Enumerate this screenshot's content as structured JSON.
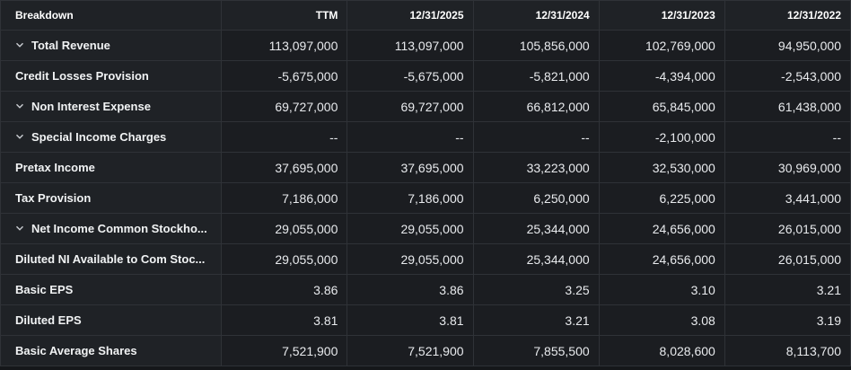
{
  "header": [
    "Breakdown",
    "TTM",
    "12/31/2025",
    "12/31/2024",
    "12/31/2023",
    "12/31/2022"
  ],
  "rows": [
    {
      "label": "Total Revenue",
      "expand_icon": "chevron-down-icon",
      "values": [
        "113,097,000",
        "113,097,000",
        "105,856,000",
        "102,769,000",
        "94,950,000"
      ]
    },
    {
      "label": "Credit Losses Provision",
      "values": [
        "-5,675,000",
        "-5,675,000",
        "-5,821,000",
        "-4,394,000",
        "-2,543,000"
      ]
    },
    {
      "label": "Non Interest Expense",
      "expand_icon": "chevron-down-icon",
      "values": [
        "69,727,000",
        "69,727,000",
        "66,812,000",
        "65,845,000",
        "61,438,000"
      ]
    },
    {
      "label": "Special Income Charges",
      "expand_icon": "chevron-down-icon",
      "values": [
        "--",
        "--",
        "--",
        "-2,100,000",
        "--"
      ]
    },
    {
      "label": "Pretax Income",
      "values": [
        "37,695,000",
        "37,695,000",
        "33,223,000",
        "32,530,000",
        "30,969,000"
      ]
    },
    {
      "label": "Tax Provision",
      "values": [
        "7,186,000",
        "7,186,000",
        "6,250,000",
        "6,225,000",
        "3,441,000"
      ]
    },
    {
      "label": "Net Income Common Stockho...",
      "expand_icon": "chevron-down-icon",
      "values": [
        "29,055,000",
        "29,055,000",
        "25,344,000",
        "24,656,000",
        "26,015,000"
      ]
    },
    {
      "label": "Diluted NI Available to Com Stoc...",
      "values": [
        "29,055,000",
        "29,055,000",
        "25,344,000",
        "24,656,000",
        "26,015,000"
      ]
    },
    {
      "label": "Basic EPS",
      "values": [
        "3.86",
        "3.86",
        "3.25",
        "3.10",
        "3.21"
      ]
    },
    {
      "label": "Diluted EPS",
      "values": [
        "3.81",
        "3.81",
        "3.21",
        "3.08",
        "3.19"
      ]
    },
    {
      "label": "Basic Average Shares",
      "values": [
        "7,521,900",
        "7,521,900",
        "7,855,500",
        "8,028,600",
        "8,113,700"
      ]
    }
  ]
}
